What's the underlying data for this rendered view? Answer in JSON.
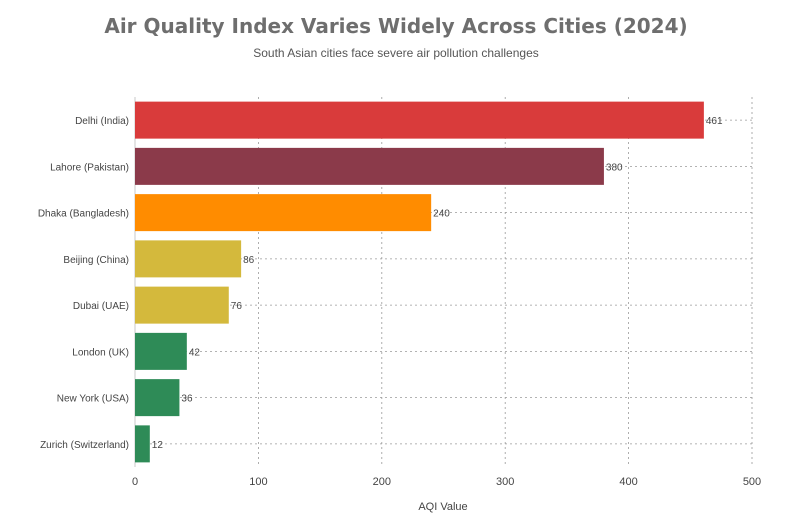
{
  "chart_data": {
    "type": "bar",
    "orientation": "horizontal",
    "title": "Air Quality Index Varies Widely Across Cities (2024)",
    "subtitle": "South Asian cities face severe air pollution challenges",
    "xlabel": "AQI Value",
    "ylabel": "",
    "xlim": [
      0,
      500
    ],
    "xticks": [
      0,
      100,
      200,
      300,
      400,
      500
    ],
    "grid": true,
    "categories": [
      "Delhi (India)",
      "Lahore (Pakistan)",
      "Dhaka (Bangladesh)",
      "Beijing (China)",
      "Dubai (UAE)",
      "London (UK)",
      "New York (USA)",
      "Zurich (Switzerland)"
    ],
    "values": [
      461,
      380,
      240,
      86,
      76,
      42,
      36,
      12
    ],
    "colors": [
      "#d93b3b",
      "#8b3a4a",
      "#ff8c00",
      "#d4b93c",
      "#d4b93c",
      "#2e8b57",
      "#2e8b57",
      "#2e8b57"
    ]
  }
}
